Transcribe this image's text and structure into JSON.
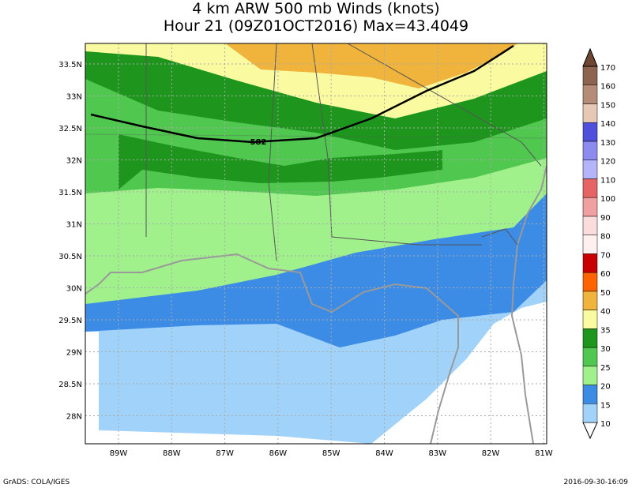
{
  "title": [
    "4 km ARW 500 mb Winds (knots)",
    "Hour 21 (09Z01OCT2016) Max=43.4049"
  ],
  "lat_labels": [
    "33.5N",
    "33N",
    "32.5N",
    "32N",
    "31.5N",
    "31N",
    "30.5N",
    "30N",
    "29.5N",
    "29N",
    "28.5N",
    "28N"
  ],
  "lon_labels": [
    "89W",
    "88W",
    "87W",
    "86W",
    "85W",
    "84W",
    "83W",
    "82W",
    "81W"
  ],
  "contour_label": "582",
  "colorbar": {
    "levels": [
      10,
      15,
      20,
      25,
      30,
      35,
      40,
      50,
      60,
      70,
      80,
      90,
      100,
      110,
      120,
      130,
      140,
      150,
      160,
      170
    ],
    "colors": [
      "#ffffff",
      "#a0d2fa",
      "#3c8ce6",
      "#a0f08c",
      "#50c850",
      "#1e961e",
      "#fafaa0",
      "#f0b43c",
      "#ff6400",
      "#c80000",
      "#fff0f0",
      "#fadcdc",
      "#f0a0a0",
      "#e66464",
      "#b4b4fa",
      "#8c8cf0",
      "#5050dc",
      "#e6c8b4",
      "#b48c78",
      "#8c6450",
      "#6e4632"
    ]
  },
  "footer": {
    "left": "GrADS: COLA/IGES",
    "right": "2016-09-30-16:09"
  }
}
